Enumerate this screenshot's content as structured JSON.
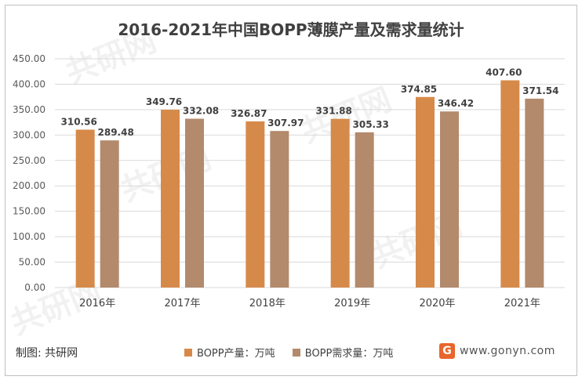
{
  "footer": {
    "source": "制图: 共研网",
    "brand_logo": "G",
    "brand_text": "www.gonyn.com"
  },
  "colors": {
    "production": "#D68A4A",
    "demand": "#B38A6C",
    "grid": "#D9D9D9",
    "text": "#404040"
  },
  "watermark": "共研网",
  "chart_data": {
    "type": "bar",
    "title": "2016-2021年中国BOPP薄膜产量及需求量统计",
    "categories": [
      "2016年",
      "2017年",
      "2018年",
      "2019年",
      "2020年",
      "2021年"
    ],
    "series": [
      {
        "name": "BOPP产量：万吨",
        "values": [
          310.56,
          349.76,
          326.87,
          331.88,
          374.85,
          407.6
        ]
      },
      {
        "name": "BOPP需求量：万吨",
        "values": [
          289.48,
          332.08,
          307.97,
          305.33,
          346.42,
          371.54
        ]
      }
    ],
    "yticks": [
      "0.00",
      "50.00",
      "100.00",
      "150.00",
      "200.00",
      "250.00",
      "300.00",
      "350.00",
      "400.00",
      "450.00"
    ],
    "ylim": [
      0,
      450
    ],
    "grid": true,
    "legend_position": "bottom",
    "xlabel": "",
    "ylabel": ""
  }
}
